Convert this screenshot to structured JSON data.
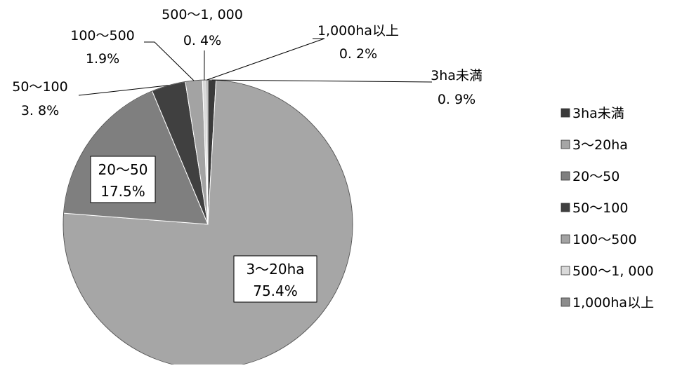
{
  "chart_data": {
    "type": "pie",
    "title": "",
    "categories": [
      "3ha未満",
      "3〜20ha",
      "20〜50",
      "50〜100",
      "100〜500",
      "500〜1,000",
      "1,000ha以上"
    ],
    "values": [
      0.9,
      75.4,
      17.5,
      3.8,
      1.9,
      0.4,
      0.2
    ],
    "colors": [
      "#3a3a3a",
      "#a6a6a6",
      "#7f7f7f",
      "#404040",
      "#a3a3a3",
      "#d9d9d9",
      "#8c8c8c"
    ],
    "legend_labels": [
      "3ha未満",
      "3〜20ha",
      "20〜50",
      "50〜100",
      "100〜500",
      "500〜1, 000",
      "1,000ha以上"
    ],
    "legend_position": "right",
    "data_labels": [
      {
        "name": "3ha未満",
        "value": "0. 9%",
        "style": "callout"
      },
      {
        "name": "3〜20ha",
        "value": "75.4%",
        "style": "inside-box"
      },
      {
        "name": "20〜50",
        "value": "17.5%",
        "style": "inside-box"
      },
      {
        "name": "50〜100",
        "value": "3. 8%",
        "style": "callout"
      },
      {
        "name": "100〜500",
        "value": "1.9%",
        "style": "callout"
      },
      {
        "name": "500〜1, 000",
        "value": "0. 4%",
        "style": "callout"
      },
      {
        "name": "1,000ha以上",
        "value": "0. 2%",
        "style": "callout"
      }
    ]
  }
}
